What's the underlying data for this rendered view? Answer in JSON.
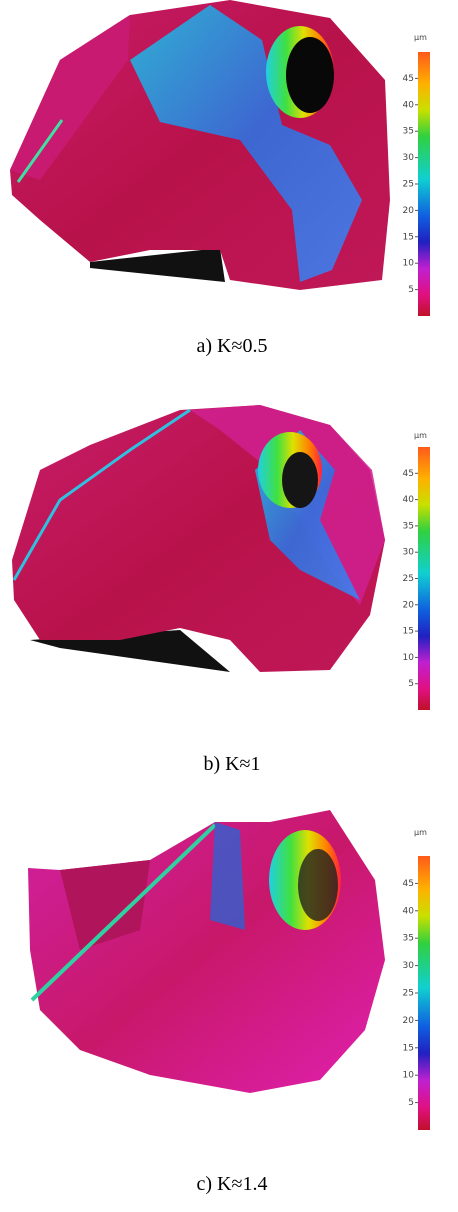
{
  "panels": [
    {
      "caption": "a) K≈0.5",
      "colorbar": {
        "unit": "µm",
        "clim": [
          0,
          50
        ],
        "ticks": [
          5,
          10,
          15,
          20,
          25,
          30,
          35,
          40,
          45
        ]
      }
    },
    {
      "caption": "b) K≈1",
      "colorbar": {
        "unit": "µm",
        "clim": [
          0,
          50
        ],
        "ticks": [
          5,
          10,
          15,
          20,
          25,
          30,
          35,
          40,
          45
        ]
      }
    },
    {
      "caption": "c) K≈1.4",
      "colorbar": {
        "unit": "µm",
        "clim": [
          0,
          50
        ],
        "ticks": [
          5,
          10,
          15,
          20,
          25,
          30,
          35,
          40,
          45
        ]
      }
    }
  ]
}
